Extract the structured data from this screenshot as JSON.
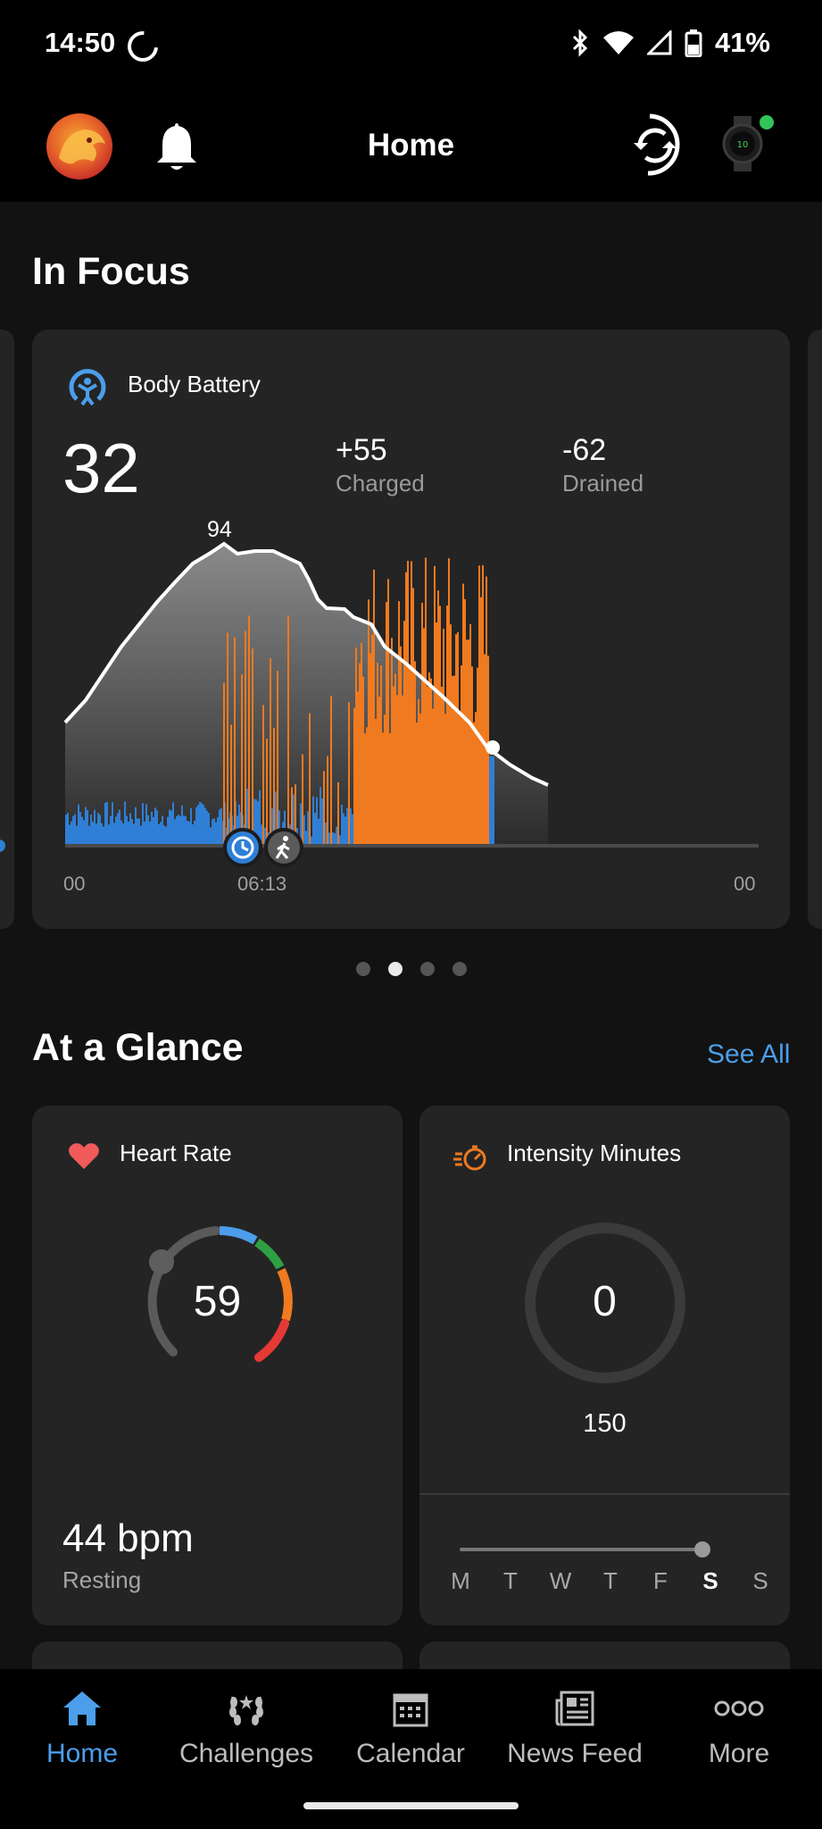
{
  "status_bar": {
    "time": "14:50",
    "battery": "41%"
  },
  "header": {
    "title": "Home"
  },
  "in_focus": {
    "heading": "In Focus",
    "card": {
      "title": "Body Battery",
      "current": "32",
      "charged_value": "+55",
      "charged_label": "Charged",
      "drained_value": "-62",
      "drained_label": "Drained",
      "peak_label": "94",
      "x_start": "00",
      "x_mid": "06:13",
      "x_end": "00"
    },
    "pager": {
      "count": 4,
      "active": 1
    }
  },
  "at_a_glance": {
    "heading": "At a Glance",
    "see_all": "See All",
    "heart_rate": {
      "label": "Heart Rate",
      "value": "59",
      "resting_value": "44 bpm",
      "resting_label": "Resting"
    },
    "intensity": {
      "label": "Intensity Minutes",
      "value": "0",
      "goal": "150",
      "days": [
        "M",
        "T",
        "W",
        "T",
        "F",
        "S",
        "S"
      ],
      "active_day_index": 5
    }
  },
  "bottom_nav": {
    "items": [
      {
        "label": "Home",
        "icon": "home-icon"
      },
      {
        "label": "Challenges",
        "icon": "laurel-icon"
      },
      {
        "label": "Calendar",
        "icon": "calendar-icon"
      },
      {
        "label": "News Feed",
        "icon": "newspaper-icon"
      },
      {
        "label": "More",
        "icon": "more-dots-icon"
      }
    ],
    "active_index": 0
  },
  "colors": {
    "accent_blue": "#4c9eea",
    "stress_orange": "#f07a1f",
    "rest_blue": "#2f7fd6",
    "heart_red": "#f05a5a",
    "online_green": "#33c35a"
  }
}
